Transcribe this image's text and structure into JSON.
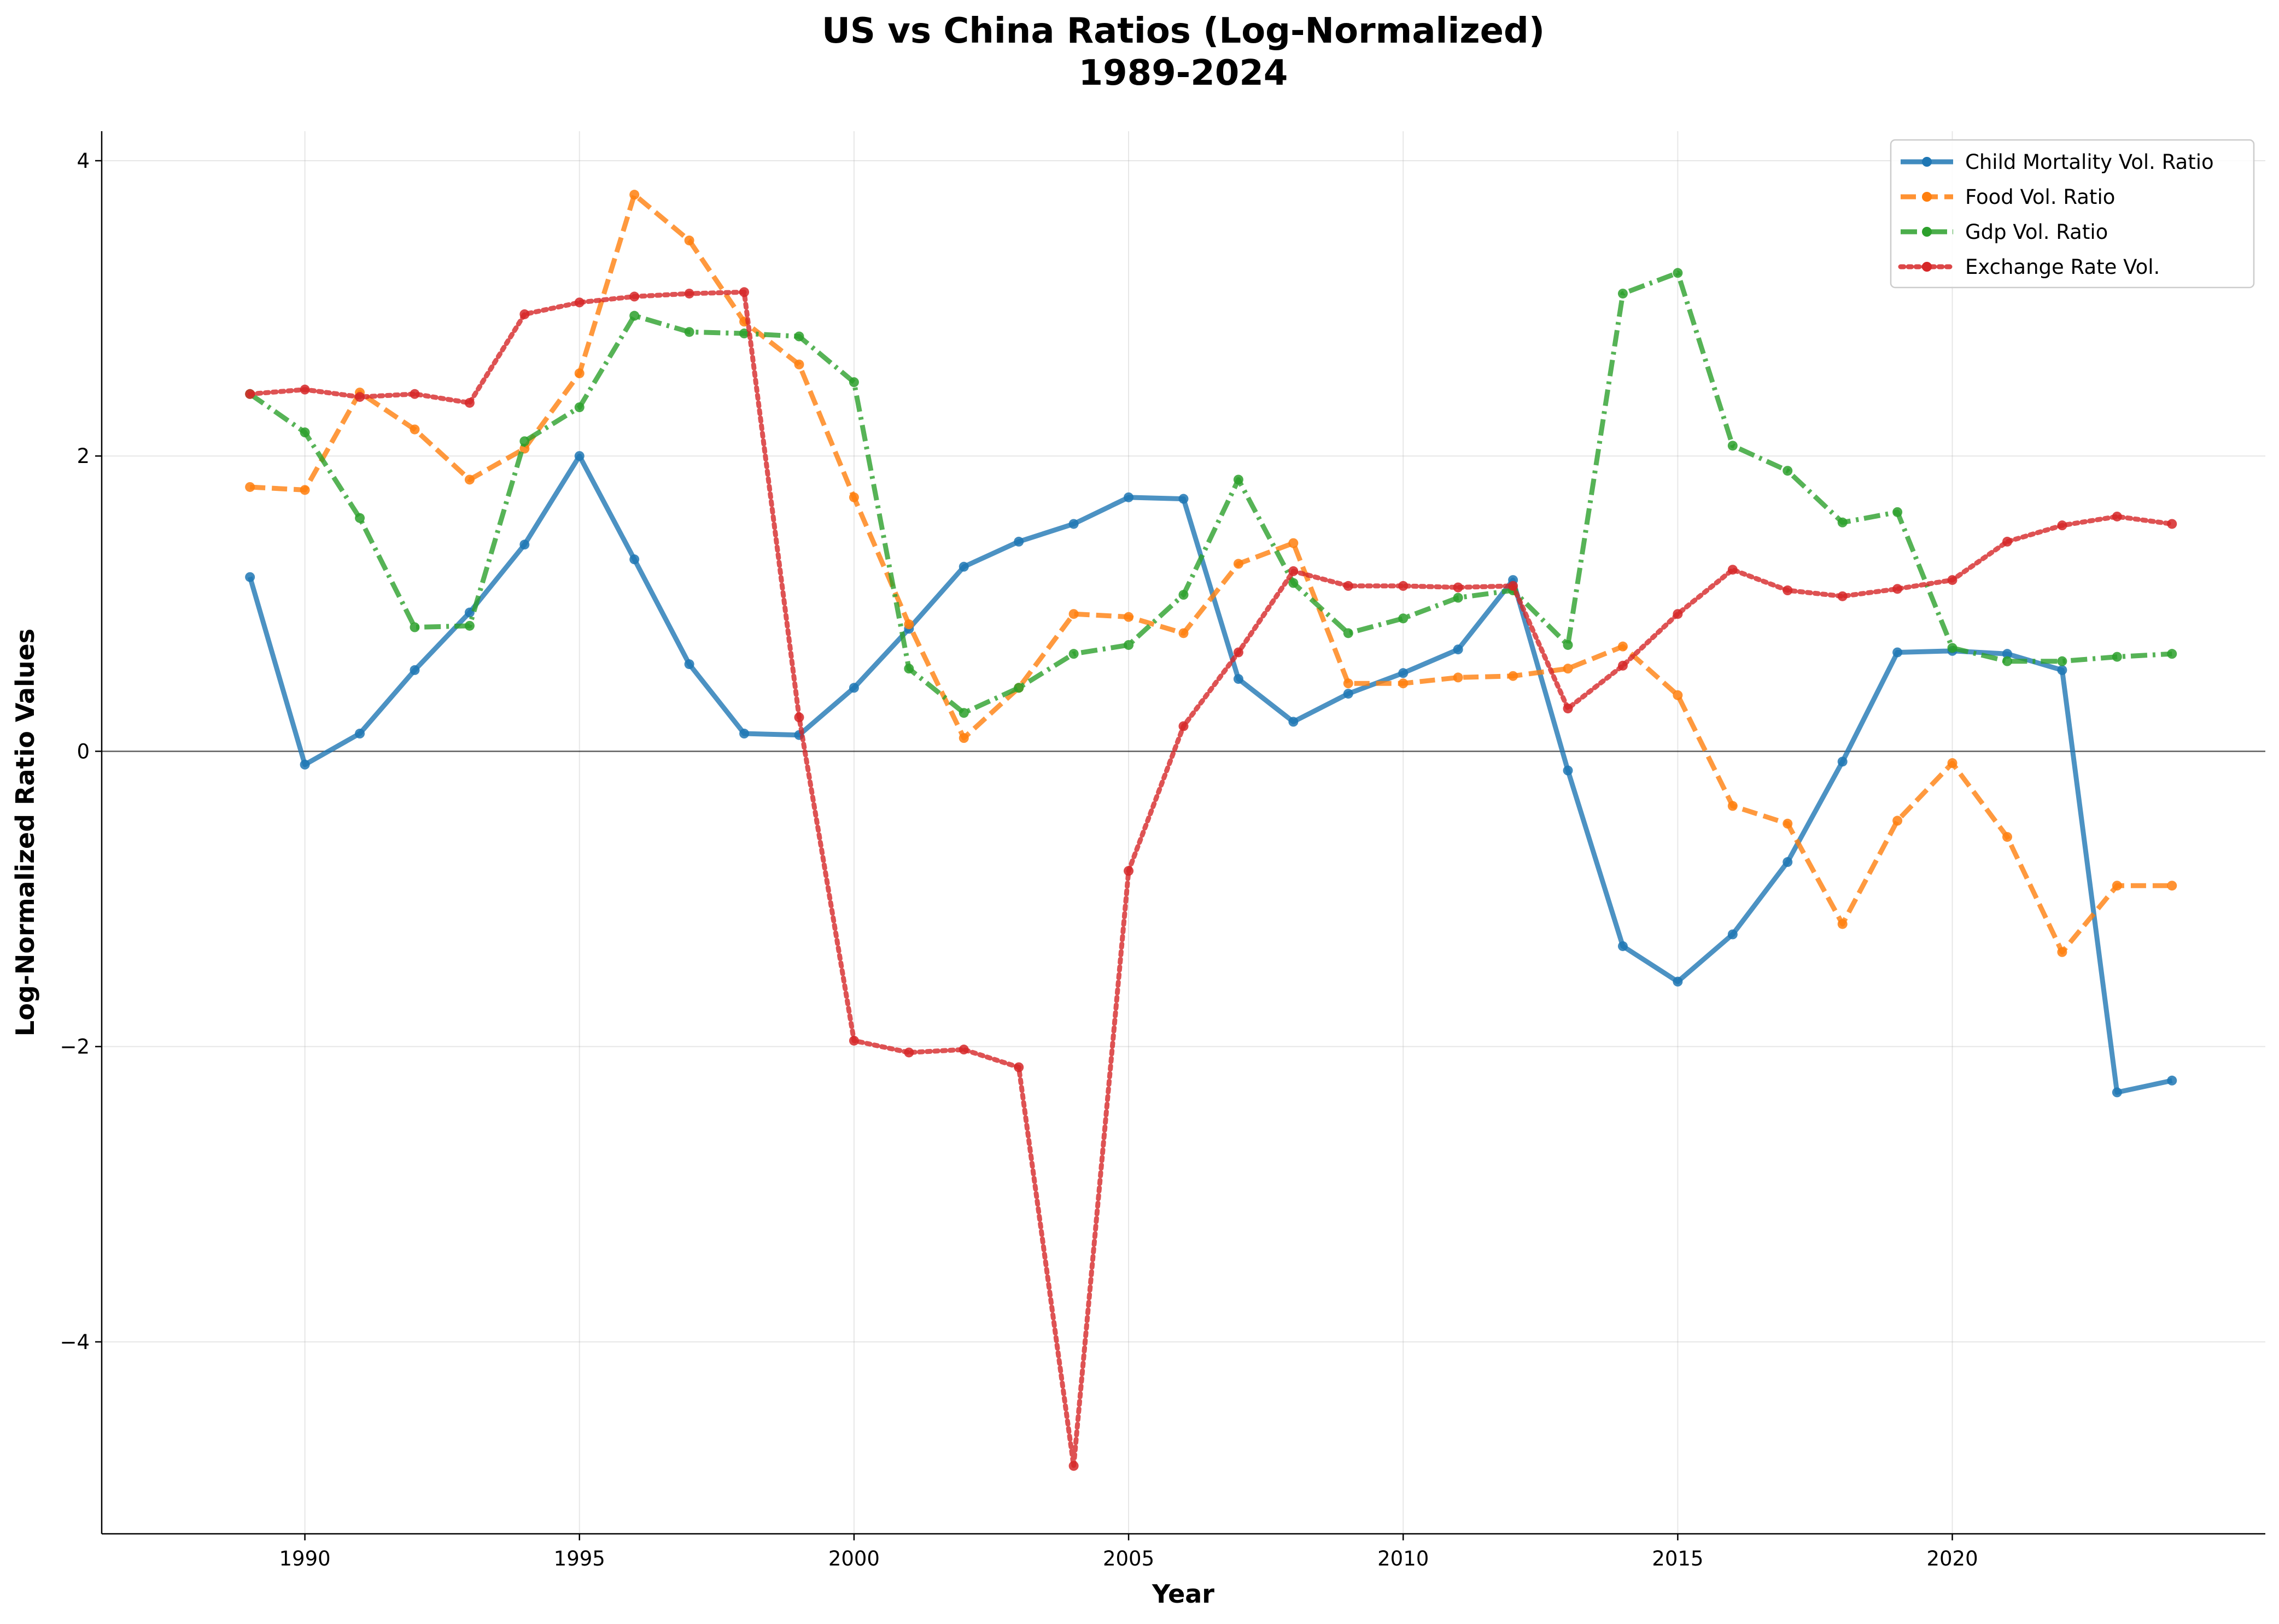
{
  "chart_data": {
    "type": "line",
    "title_line1": "US vs China Ratios (Log-Normalized)",
    "title_line2": "1989-2024",
    "xlabel": "Year",
    "ylabel": "Log-Normalized Ratio Values",
    "xlim": [
      1986.3,
      2025.7
    ],
    "ylim": [
      -5.3,
      4.2
    ],
    "x_ticks": [
      1990,
      1995,
      2000,
      2005,
      2010,
      2015,
      2020
    ],
    "y_ticks": [
      -4,
      -2,
      0,
      2,
      4
    ],
    "y_tick_labels": [
      "−4",
      "−2",
      "0",
      "2",
      "4"
    ],
    "grid": true,
    "zero_line": true,
    "legend_position": "top-right",
    "x": [
      1989,
      1990,
      1991,
      1992,
      1993,
      1994,
      1995,
      1996,
      1997,
      1998,
      1999,
      2000,
      2001,
      2002,
      2003,
      2004,
      2005,
      2006,
      2007,
      2008,
      2009,
      2010,
      2011,
      2012,
      2013,
      2014,
      2015,
      2016,
      2017,
      2018,
      2019,
      2020,
      2021,
      2022,
      2023,
      2024
    ],
    "series": [
      {
        "name": "Child Mortality Vol. Ratio",
        "color": "#1f77b4",
        "style": "solid",
        "values": [
          1.18,
          -0.09,
          0.12,
          0.55,
          0.94,
          1.4,
          2.0,
          1.3,
          0.59,
          0.12,
          0.11,
          0.43,
          0.83,
          1.25,
          1.42,
          1.54,
          1.72,
          1.71,
          0.49,
          0.2,
          0.39,
          0.53,
          0.69,
          1.16,
          -0.13,
          -1.32,
          -1.56,
          -1.24,
          -0.75,
          -0.07,
          0.67,
          0.68,
          0.66,
          0.55,
          -2.31,
          -2.23
        ]
      },
      {
        "name": "Food Vol. Ratio",
        "color": "#ff7f0e",
        "style": "dashed",
        "values": [
          1.79,
          1.77,
          2.43,
          2.18,
          1.84,
          2.05,
          2.56,
          3.77,
          3.46,
          2.91,
          2.62,
          1.72,
          0.86,
          0.09,
          0.43,
          0.93,
          0.91,
          0.8,
          1.27,
          1.41,
          0.46,
          0.46,
          0.5,
          0.51,
          0.56,
          0.71,
          0.38,
          -0.37,
          -0.49,
          -1.17,
          -0.47,
          -0.08,
          -0.58,
          -1.36,
          -0.91,
          -0.91
        ]
      },
      {
        "name": "Gdp Vol. Ratio",
        "color": "#2ca02c",
        "style": "dashdot",
        "values": [
          2.42,
          2.16,
          1.58,
          0.84,
          0.85,
          2.1,
          2.33,
          2.95,
          2.84,
          2.83,
          2.81,
          2.5,
          0.56,
          0.26,
          0.43,
          0.66,
          0.72,
          1.06,
          1.84,
          1.14,
          0.8,
          0.9,
          1.04,
          1.09,
          0.72,
          3.1,
          3.24,
          2.07,
          1.9,
          1.55,
          1.62,
          0.7,
          0.61,
          0.61,
          0.64,
          0.66
        ]
      },
      {
        "name": "Exchange Rate Vol.",
        "color": "#d62728",
        "style": "dotted",
        "values": [
          2.42,
          2.45,
          2.4,
          2.42,
          2.36,
          2.96,
          3.04,
          3.08,
          3.1,
          3.11,
          0.23,
          -1.96,
          -2.04,
          -2.02,
          -2.14,
          -4.84,
          -0.81,
          0.17,
          0.67,
          1.22,
          1.12,
          1.12,
          1.11,
          1.12,
          0.29,
          0.58,
          0.93,
          1.23,
          1.09,
          1.05,
          1.1,
          1.16,
          1.42,
          1.53,
          1.59,
          1.54
        ]
      }
    ]
  }
}
